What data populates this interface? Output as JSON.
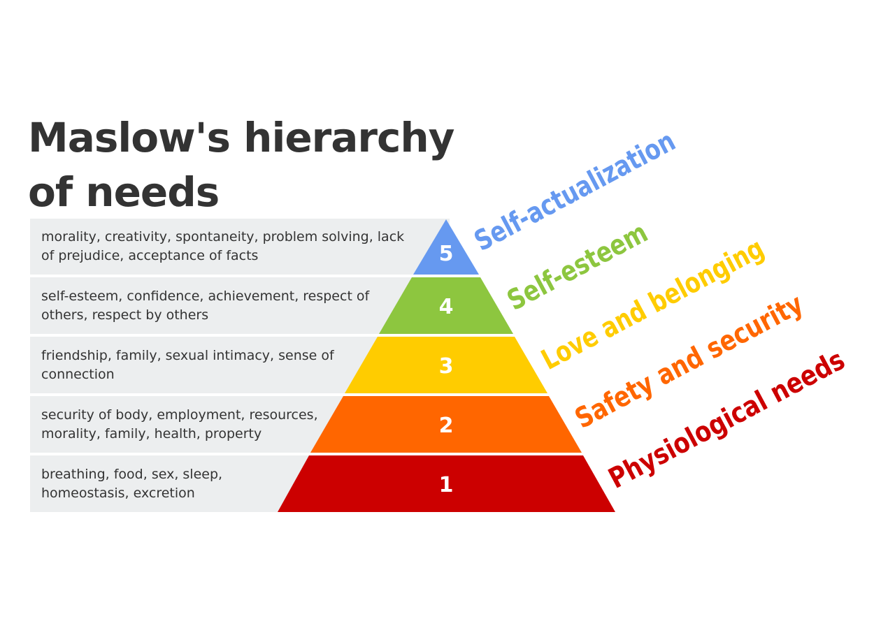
{
  "title_lines": [
    "Maslow's hierarchy",
    "of needs"
  ],
  "levels": [
    {
      "number": "5",
      "name": "Self-actualization",
      "color": "#6699f0",
      "description_lines": [
        "morality, creativity, spontaneity, problem solving, lack",
        "of prejudice, acceptance of facts"
      ]
    },
    {
      "number": "4",
      "name": "Self-esteem",
      "color": "#8dc63f",
      "description_lines": [
        "self-esteem, confidence, achievement, respect of",
        "others, respect by others"
      ]
    },
    {
      "number": "3",
      "name": "Love and belonging",
      "color": "#ffcc00",
      "description_lines": [
        "friendship, family, sexual intimacy, sense of",
        "connection"
      ]
    },
    {
      "number": "2",
      "name": "Safety and security",
      "color": "#ff6600",
      "description_lines": [
        "security of body, employment, resources,",
        "morality, family, health, property"
      ]
    },
    {
      "number": "1",
      "name": "Physiological needs",
      "color": "#cc0000",
      "description_lines": [
        "breathing, food, sex, sleep,",
        "homeostasis, excretion"
      ]
    }
  ],
  "band_color": "#eceeef",
  "text_color": "#333333"
}
